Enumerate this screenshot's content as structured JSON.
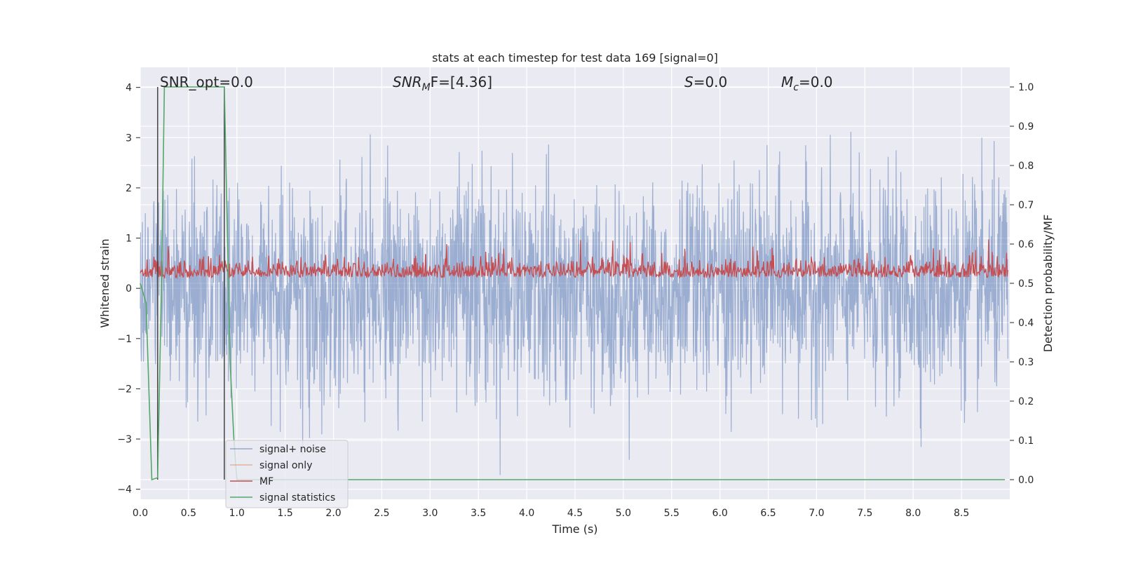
{
  "chart_data": {
    "type": "line",
    "title": "stats at each timestep for test data 169 [signal=0]",
    "xlabel": "Time (s)",
    "ylabel": "Whitened strain",
    "y2label": "Detection probability/MF",
    "xlim": [
      0.0,
      9.0
    ],
    "ylim": [
      -4.2,
      4.4
    ],
    "y2lim": [
      -0.05,
      1.05
    ],
    "xticks": [
      "0.0",
      "0.5",
      "1.0",
      "1.5",
      "2.0",
      "2.5",
      "3.0",
      "3.5",
      "4.0",
      "4.5",
      "5.0",
      "5.5",
      "6.0",
      "6.5",
      "7.0",
      "7.5",
      "8.0",
      "8.5"
    ],
    "yticks": [
      "4",
      "3",
      "2",
      "1",
      "0",
      "−1",
      "−2",
      "−3",
      "−4"
    ],
    "y2ticks": [
      "1.0",
      "0.9",
      "0.8",
      "0.7",
      "0.6",
      "0.5",
      "0.4",
      "0.3",
      "0.2",
      "0.1",
      "0.0"
    ],
    "grid": true,
    "legend_position": "lower-left",
    "annotations": {
      "snr_opt": "SNR_opt=0.0",
      "snr_mf_main": "SNR",
      "snr_mf_sub": "M",
      "snr_mf_rest": "F=[4.36]",
      "s_main": "S",
      "s_rest": "=0.0",
      "mc_main": "M",
      "mc_sub": "c",
      "mc_rest": "=0.0"
    },
    "vlines": [
      0.18,
      0.87
    ],
    "series": [
      {
        "name": "signal+ noise",
        "color": "#4c72b0",
        "axis": "left",
        "description": "dense whitened noise, amplitude about ±1.5 with peaks up to ±4 over 0–9 s"
      },
      {
        "name": "signal only",
        "color": "#dd8452",
        "axis": "left",
        "values": []
      },
      {
        "name": "MF",
        "color": "#c44e52",
        "axis": "right",
        "description": "matched filter output fluctuating between about 0.5 and 0.6"
      },
      {
        "name": "signal statistics",
        "color": "#55a868",
        "axis": "right",
        "x": [
          0.0,
          0.06,
          0.12,
          0.18,
          0.22,
          0.25,
          0.3,
          0.5,
          0.87,
          0.93,
          0.97,
          1.0,
          2.0,
          4.0,
          6.0,
          8.0,
          8.95
        ],
        "values": [
          0.5,
          0.45,
          0.0,
          0.005,
          0.5,
          1.0,
          1.0,
          1.0,
          1.0,
          0.3,
          0.1,
          0.0,
          0.0,
          0.0,
          0.0,
          0.0,
          0.0
        ]
      }
    ]
  }
}
